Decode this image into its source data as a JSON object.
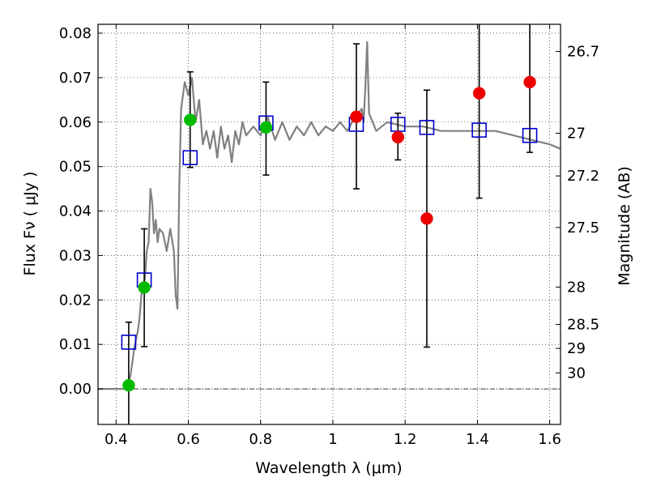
{
  "chart_data": {
    "type": "scatter",
    "title": "",
    "xlabel": "Wavelength  λ (μm)",
    "ylabel": "Flux  Fν  ( μJy )",
    "y2label": "Magnitude (AB)",
    "xlim": [
      0.35,
      1.63
    ],
    "ylim": [
      -0.008,
      0.082
    ],
    "x_ticks": [
      0.4,
      0.6,
      0.8,
      1.0,
      1.2,
      1.4,
      1.6
    ],
    "x_tick_labels": [
      "0.4",
      "0.6",
      "0.8",
      "1",
      "1.2",
      "1.4",
      "1.6"
    ],
    "y_ticks": [
      0.0,
      0.01,
      0.02,
      0.03,
      0.04,
      0.05,
      0.06,
      0.07,
      0.08
    ],
    "y_tick_labels": [
      "0.00",
      "0.01",
      "0.02",
      "0.03",
      "0.04",
      "0.05",
      "0.06",
      "0.07",
      "0.08"
    ],
    "y2_ticks": [
      {
        "label": "26.7",
        "flux": 0.0759
      },
      {
        "label": "27",
        "flux": 0.0575
      },
      {
        "label": "27.2",
        "flux": 0.0479
      },
      {
        "label": "27.5",
        "flux": 0.0363
      },
      {
        "label": "28",
        "flux": 0.0229
      },
      {
        "label": "28.5",
        "flux": 0.0145
      },
      {
        "label": "29",
        "flux": 0.0091
      },
      {
        "label": "30",
        "flux": 0.0036
      }
    ],
    "grid": true,
    "colors": {
      "model": "#808080",
      "model_photometry": "#0000cc",
      "green_points": "#00bb00",
      "red_points": "#ee0000",
      "errorbar": "#000000",
      "zero_line": "#000000"
    },
    "series": [
      {
        "name": "model spectrum",
        "style": "line",
        "color": "#808080",
        "x": [
          0.35,
          0.4,
          0.42,
          0.43,
          0.44,
          0.445,
          0.45,
          0.46,
          0.465,
          0.47,
          0.48,
          0.485,
          0.49,
          0.495,
          0.5,
          0.505,
          0.51,
          0.515,
          0.52,
          0.53,
          0.54,
          0.55,
          0.56,
          0.565,
          0.57,
          0.575,
          0.58,
          0.59,
          0.6,
          0.61,
          0.62,
          0.63,
          0.64,
          0.65,
          0.66,
          0.67,
          0.68,
          0.69,
          0.7,
          0.71,
          0.72,
          0.73,
          0.74,
          0.75,
          0.76,
          0.78,
          0.8,
          0.82,
          0.84,
          0.86,
          0.88,
          0.9,
          0.92,
          0.94,
          0.96,
          0.98,
          1.0,
          1.02,
          1.04,
          1.06,
          1.07,
          1.08,
          1.085,
          1.09,
          1.095,
          1.1,
          1.12,
          1.15,
          1.2,
          1.25,
          1.3,
          1.35,
          1.4,
          1.45,
          1.5,
          1.55,
          1.6,
          1.63
        ],
        "y": [
          0.0,
          0.0,
          0.0,
          0.0003,
          0.003,
          0.006,
          0.009,
          0.013,
          0.016,
          0.021,
          0.025,
          0.031,
          0.033,
          0.045,
          0.042,
          0.035,
          0.038,
          0.033,
          0.036,
          0.035,
          0.031,
          0.036,
          0.031,
          0.021,
          0.018,
          0.046,
          0.063,
          0.069,
          0.066,
          0.07,
          0.06,
          0.065,
          0.055,
          0.058,
          0.054,
          0.058,
          0.052,
          0.059,
          0.054,
          0.057,
          0.051,
          0.058,
          0.055,
          0.06,
          0.057,
          0.059,
          0.057,
          0.061,
          0.056,
          0.06,
          0.056,
          0.059,
          0.057,
          0.06,
          0.057,
          0.059,
          0.058,
          0.06,
          0.058,
          0.061,
          0.062,
          0.063,
          0.06,
          0.068,
          0.078,
          0.062,
          0.058,
          0.06,
          0.059,
          0.059,
          0.058,
          0.058,
          0.058,
          0.058,
          0.057,
          0.056,
          0.055,
          0.054
        ]
      },
      {
        "name": "model photometry",
        "style": "open-square",
        "color": "#0000cc",
        "x": [
          0.435,
          0.478,
          0.605,
          0.815,
          1.065,
          1.18,
          1.26,
          1.405,
          1.545
        ],
        "y": [
          0.0105,
          0.0245,
          0.052,
          0.0598,
          0.0595,
          0.0595,
          0.0588,
          0.0582,
          0.057
        ]
      },
      {
        "name": "optical detections",
        "style": "filled-circle",
        "color": "#00bb00",
        "x": [
          0.435,
          0.478,
          0.605,
          0.815
        ],
        "y": [
          0.0008,
          0.0228,
          0.0605,
          0.0588
        ],
        "yerr_low": [
          0.0088,
          0.0133,
          0.0107,
          0.0107
        ],
        "yerr_high": [
          0.0142,
          0.0132,
          0.0108,
          0.0102
        ]
      },
      {
        "name": "infrared detections",
        "style": "filled-circle",
        "color": "#ee0000",
        "x": [
          1.065,
          1.18,
          1.26,
          1.405,
          1.545
        ],
        "y": [
          0.0612,
          0.0566,
          0.0383,
          0.0665,
          0.069
        ],
        "yerr_low": [
          0.0162,
          0.0051,
          0.0289,
          0.0236,
          0.0158
        ],
        "yerr_high": [
          0.0164,
          0.0054,
          0.0289,
          0.0235,
          0.0158
        ]
      }
    ]
  }
}
